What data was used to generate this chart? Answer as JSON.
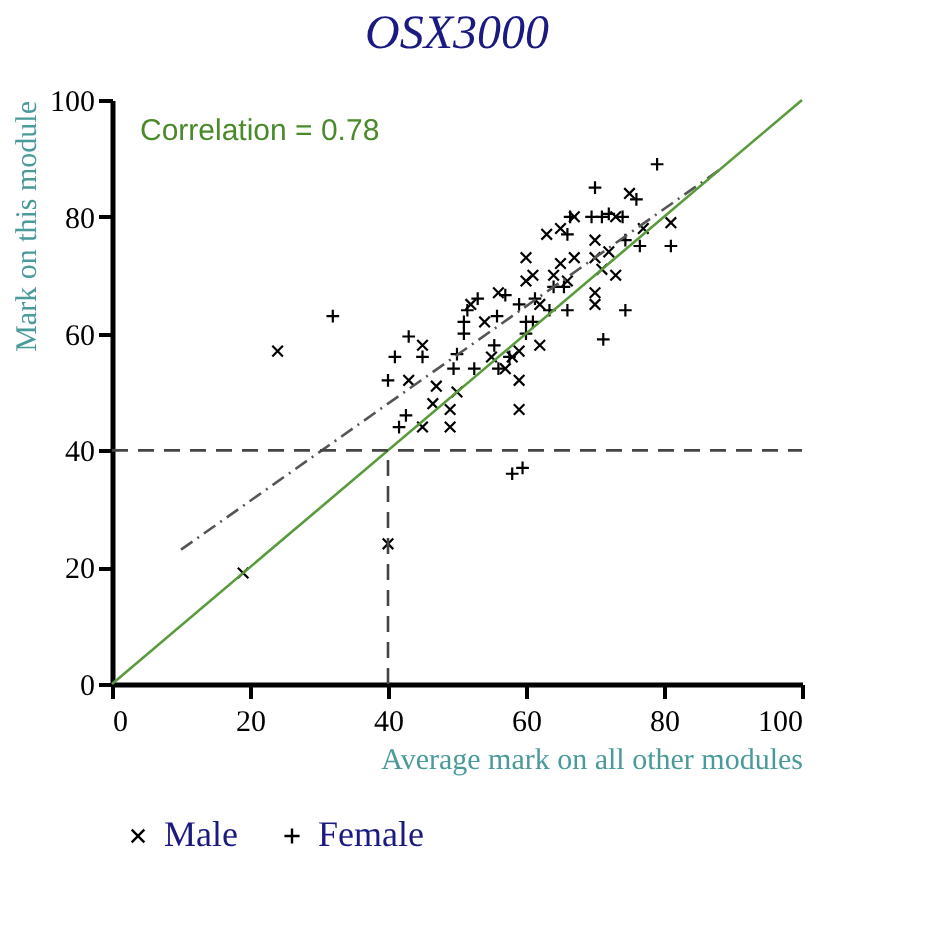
{
  "chart_data": {
    "type": "scatter",
    "title": "OSX3000",
    "xlabel": "Average mark on all other modules",
    "ylabel": "Mark on this module",
    "annotations": [
      "Correlation = 0.78"
    ],
    "xlim": [
      0,
      100
    ],
    "ylim": [
      0,
      100
    ],
    "xticks": [
      0,
      20,
      40,
      60,
      80,
      100
    ],
    "yticks": [
      0,
      20,
      40,
      60,
      80,
      100
    ],
    "grid": false,
    "legend": "bottom",
    "series": [
      {
        "name": "Male",
        "color": "#000000",
        "marker": "x",
        "x": [
          24,
          19,
          40,
          45,
          45,
          43,
          49,
          49,
          46.5,
          47,
          50,
          55,
          56,
          59,
          59,
          62,
          60,
          60,
          62,
          65,
          65,
          66,
          67,
          70,
          70,
          70,
          71,
          72,
          73,
          73,
          81,
          75,
          77,
          70,
          52,
          54,
          58,
          57,
          63,
          61,
          59,
          64,
          67
        ],
        "values": [
          57,
          19,
          24,
          58,
          44,
          52,
          44,
          47,
          48,
          51,
          50,
          56,
          67,
          52,
          47,
          58,
          73,
          69,
          65,
          72,
          78,
          69,
          73,
          67,
          65,
          76,
          71,
          74,
          70,
          80,
          79,
          84,
          78,
          73,
          65,
          62,
          56,
          54,
          77,
          70,
          57,
          70,
          80
        ]
      },
      {
        "name": "Female",
        "color": "#000000",
        "marker": "cross",
        "x": [
          32,
          43,
          41,
          40,
          41.6,
          42.6,
          45,
          49.5,
          50,
          51,
          51,
          52.5,
          55.4,
          56,
          51.5,
          53,
          58,
          59.5,
          57.6,
          60,
          61,
          61.3,
          59,
          60,
          63.4,
          64,
          66,
          66.4,
          66,
          70,
          69.5,
          71.2,
          74.4,
          74,
          76,
          79,
          76.5,
          81,
          72,
          71,
          74.4,
          65.5,
          57,
          55.8
        ],
        "values": [
          63,
          59.5,
          56,
          52,
          44,
          46,
          56,
          54,
          56.5,
          62,
          60,
          54,
          58,
          54,
          64,
          66,
          36,
          37,
          56,
          62,
          62,
          66,
          65,
          60,
          64,
          68,
          64,
          80,
          77,
          85,
          80,
          59,
          64,
          80,
          83,
          89,
          75,
          75,
          80.5,
          80,
          76,
          68,
          66.6,
          63
        ]
      },
      {
        "type": "line",
        "color": "#555555",
        "line_style": "dashdot",
        "x": [
          10,
          88
        ],
        "values": [
          23,
          88
        ]
      },
      {
        "type": "line",
        "color": "#5a9a3c",
        "line_style": "solid",
        "x": [
          0,
          100
        ],
        "values": [
          0,
          100
        ]
      },
      {
        "type": "line",
        "color": "#444444",
        "line_style": "dashed",
        "x": [
          0,
          100
        ],
        "values": [
          40,
          40
        ]
      },
      {
        "type": "line",
        "color": "#444444",
        "line_style": "dashed",
        "x": [
          40,
          40
        ],
        "values": [
          0,
          40
        ]
      }
    ]
  }
}
